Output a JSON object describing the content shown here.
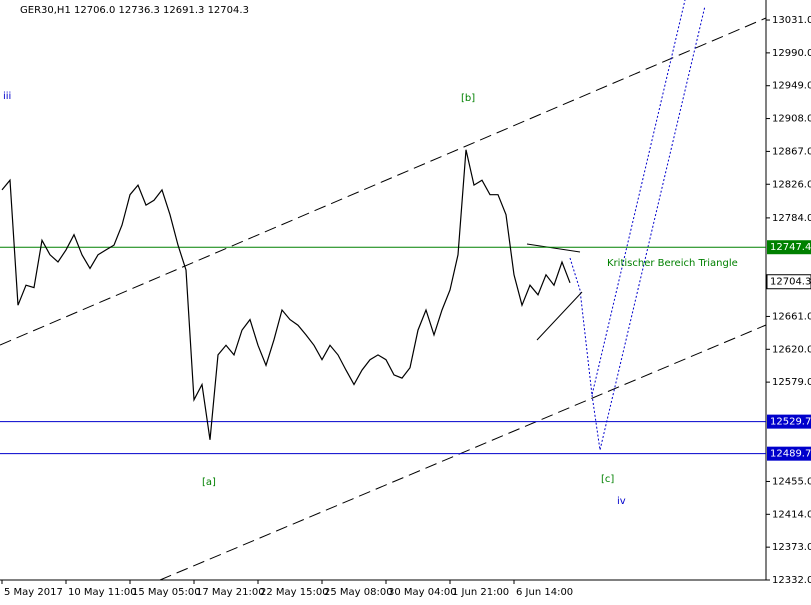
{
  "chart_data": {
    "type": "line",
    "title": "GER30,H1  12706.0 12736.3 12691.3 12704.3",
    "categories": [
      "5 May 2017",
      null,
      null,
      null,
      null,
      null,
      null,
      null,
      "10 May 11:00",
      null,
      null,
      null,
      null,
      null,
      null,
      null,
      "15 May 05:00",
      null,
      null,
      null,
      null,
      null,
      null,
      null,
      "17 May 21:00",
      null,
      null,
      null,
      null,
      null,
      null,
      null,
      "22 May 15:00",
      null,
      null,
      null,
      null,
      null,
      null,
      null,
      "25 May 08:00",
      null,
      null,
      null,
      null,
      null,
      null,
      null,
      "30 May 04:00",
      null,
      null,
      null,
      null,
      null,
      null,
      null,
      "1 Jun 21:00",
      null,
      null,
      null,
      null,
      null,
      null,
      null,
      "6 Jun 14:00",
      null,
      null,
      null,
      null,
      null,
      null,
      null
    ],
    "series": [
      {
        "name": "GER30,H1",
        "color": "#000000",
        "values": [
          12819,
          12831,
          12675,
          12700,
          12697,
          12756,
          12738,
          12729,
          12744,
          12763,
          12738,
          12721,
          12738,
          12744,
          12750,
          12775,
          12813,
          12825,
          12800,
          12806,
          12819,
          12788,
          12750,
          12719,
          12557,
          12576,
          12507,
          12613,
          12625,
          12613,
          12644,
          12657,
          12625,
          12600,
          12632,
          12669,
          12657,
          12650,
          12638,
          12625,
          12607,
          12625,
          12613,
          12594,
          12576,
          12594,
          12607,
          12613,
          12607,
          12588,
          12584,
          12597,
          12644,
          12669,
          12638,
          12669,
          12694,
          12738,
          12869,
          12825,
          12831,
          12813,
          12813,
          12788,
          12713,
          12675,
          12700,
          12688,
          12713,
          12700,
          12729,
          12703
        ]
      }
    ],
    "ylim": [
      12332,
      13056
    ],
    "yticks": [
      {
        "value": 13031,
        "label": "13031.0"
      },
      {
        "value": 12990,
        "label": "12990.0"
      },
      {
        "value": 12949,
        "label": "12949.0"
      },
      {
        "value": 12908,
        "label": "12908.0"
      },
      {
        "value": 12867,
        "label": "12867.0"
      },
      {
        "value": 12826,
        "label": "12826.0"
      },
      {
        "value": 12784,
        "label": "12784.0"
      },
      {
        "value": 12661,
        "label": "12661.0"
      },
      {
        "value": 12620,
        "label": "12620.0"
      },
      {
        "value": 12579,
        "label": "12579.0"
      },
      {
        "value": 12455,
        "label": "12455.0"
      },
      {
        "value": 12414,
        "label": "12414.0"
      },
      {
        "value": 12373,
        "label": "12373.0"
      },
      {
        "value": 12332,
        "label": "12332.0"
      }
    ],
    "levels": [
      {
        "value": 12747.4,
        "color": "#008000"
      },
      {
        "value": 12529.7,
        "color": "#0000cc"
      },
      {
        "value": 12489.7,
        "color": "#0000cc"
      }
    ],
    "last_price": 12704.3,
    "annotations": [
      "iii",
      "[b]",
      "[a]",
      "[c]",
      "iv",
      "Kritischer Bereich Triangle"
    ]
  }
}
